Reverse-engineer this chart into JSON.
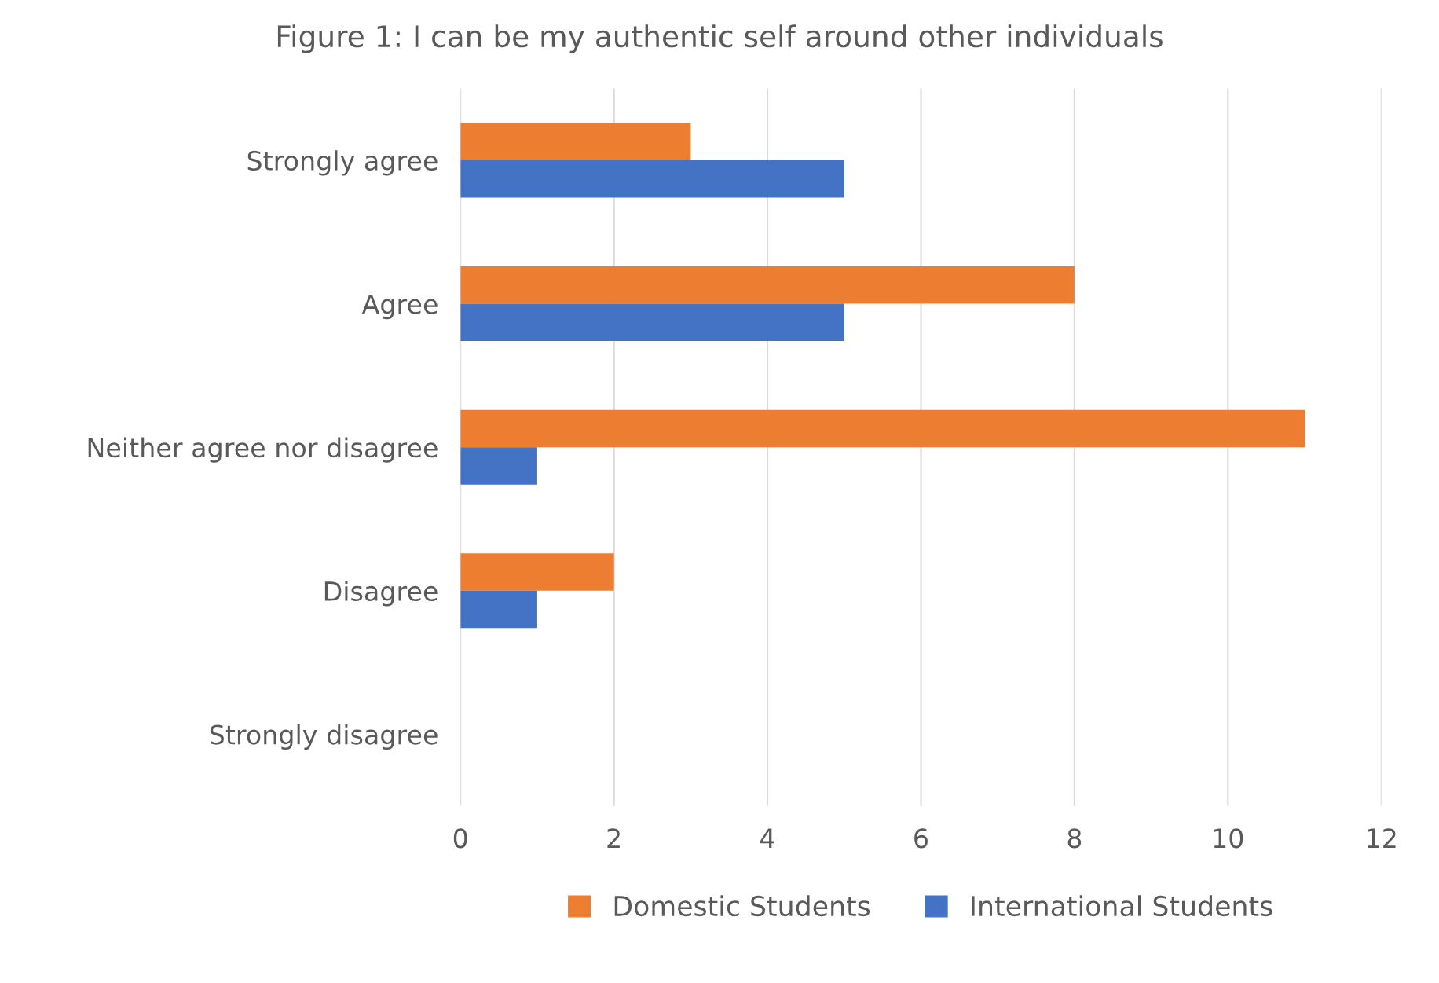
{
  "chart_data": {
    "type": "bar",
    "orientation": "horizontal",
    "title": "Figure 1: I can be my authentic self around other individuals",
    "categories": [
      "Strongly agree",
      "Agree",
      "Neither agree nor disagree",
      "Disagree",
      "Strongly disagree"
    ],
    "series": [
      {
        "name": "Domestic Students",
        "color": "#ed7d31",
        "values": [
          3,
          8,
          11,
          2,
          0
        ]
      },
      {
        "name": "International Students",
        "color": "#4472c4",
        "values": [
          5,
          5,
          1,
          1,
          0
        ]
      }
    ],
    "xlim": [
      0,
      12
    ],
    "xticks": [
      0,
      2,
      4,
      6,
      8,
      10,
      12
    ],
    "grid": "x",
    "legend": "bottom"
  }
}
